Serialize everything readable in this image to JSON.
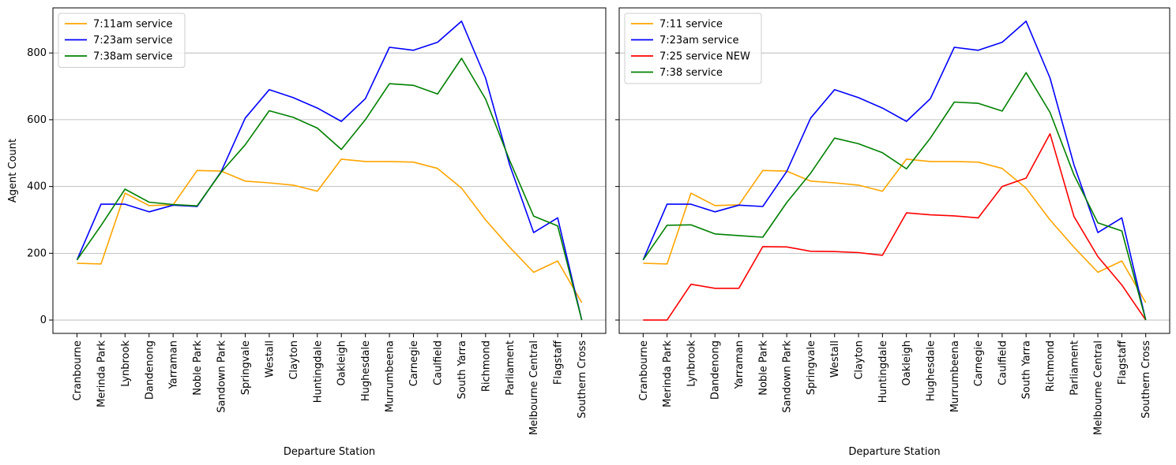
{
  "chart_data": [
    {
      "type": "line",
      "xlabel": "Departure Station",
      "ylabel": "Agent Count",
      "ylim": [
        -40,
        935
      ],
      "yticks": [
        0,
        200,
        400,
        600,
        800
      ],
      "grid": "horizontal",
      "legend": "top-left",
      "categories": [
        "Cranbourne",
        "Merinda Park",
        "Lynbrook",
        "Dandenong",
        "Yarraman",
        "Noble Park",
        "Sandown Park",
        "Springvale",
        "Westall",
        "Clayton",
        "Huntingdale",
        "Oakleigh",
        "Hughesdale",
        "Murrumbeena",
        "Carnegie",
        "Caulfield",
        "South Yarra",
        "Richmond",
        "Parliament",
        "Melbourne Central",
        "Flagstaff",
        "Southern Cross"
      ],
      "series": [
        {
          "name": "7:11am service",
          "color": "#FFA500",
          "values": [
            170,
            168,
            380,
            343,
            345,
            448,
            446,
            416,
            411,
            404,
            386,
            482,
            475,
            475,
            473,
            454,
            395,
            300,
            218,
            143,
            177,
            52
          ]
        },
        {
          "name": "7:23am service",
          "color": "#0000FF",
          "values": [
            180,
            347,
            347,
            324,
            344,
            340,
            445,
            605,
            690,
            666,
            635,
            595,
            663,
            817,
            808,
            832,
            895,
            725,
            465,
            262,
            306,
            0
          ]
        },
        {
          "name": "7:38am service",
          "color": "#008000",
          "values": [
            180,
            283,
            392,
            353,
            346,
            342,
            443,
            525,
            627,
            607,
            575,
            511,
            600,
            708,
            703,
            677,
            784,
            662,
            478,
            311,
            282,
            0
          ]
        }
      ]
    },
    {
      "type": "line",
      "xlabel": "Departure Station",
      "ylabel": "",
      "ylim": [
        -40,
        935
      ],
      "yticks": [
        0,
        200,
        400,
        600,
        800
      ],
      "grid": "horizontal",
      "legend": "top-left",
      "categories": [
        "Cranbourne",
        "Merinda Park",
        "Lynbrook",
        "Dandenong",
        "Yarraman",
        "Noble Park",
        "Sandown Park",
        "Springvale",
        "Westall",
        "Clayton",
        "Huntingdale",
        "Oakleigh",
        "Hughesdale",
        "Murrumbeena",
        "Carnegie",
        "Caulfield",
        "South Yarra",
        "Richmond",
        "Parliament",
        "Melbourne Central",
        "Flagstaff",
        "Southern Cross"
      ],
      "series": [
        {
          "name": "7:11 service",
          "color": "#FFA500",
          "values": [
            170,
            168,
            380,
            343,
            345,
            448,
            446,
            416,
            411,
            404,
            386,
            482,
            475,
            475,
            473,
            454,
            395,
            300,
            218,
            143,
            177,
            52
          ]
        },
        {
          "name": "7:23am service",
          "color": "#0000FF",
          "values": [
            180,
            347,
            347,
            324,
            344,
            340,
            445,
            605,
            690,
            666,
            635,
            595,
            663,
            817,
            808,
            832,
            895,
            725,
            465,
            262,
            306,
            0
          ]
        },
        {
          "name": "7:25 service NEW",
          "color": "#FF0000",
          "values": [
            0,
            0,
            107,
            95,
            95,
            220,
            219,
            206,
            205,
            202,
            194,
            321,
            315,
            312,
            306,
            400,
            425,
            558,
            310,
            190,
            105,
            0
          ]
        },
        {
          "name": "7:38 service",
          "color": "#008000",
          "values": [
            180,
            284,
            285,
            258,
            253,
            248,
            352,
            440,
            545,
            528,
            501,
            453,
            545,
            653,
            649,
            626,
            741,
            622,
            435,
            291,
            267,
            0
          ]
        }
      ]
    }
  ]
}
